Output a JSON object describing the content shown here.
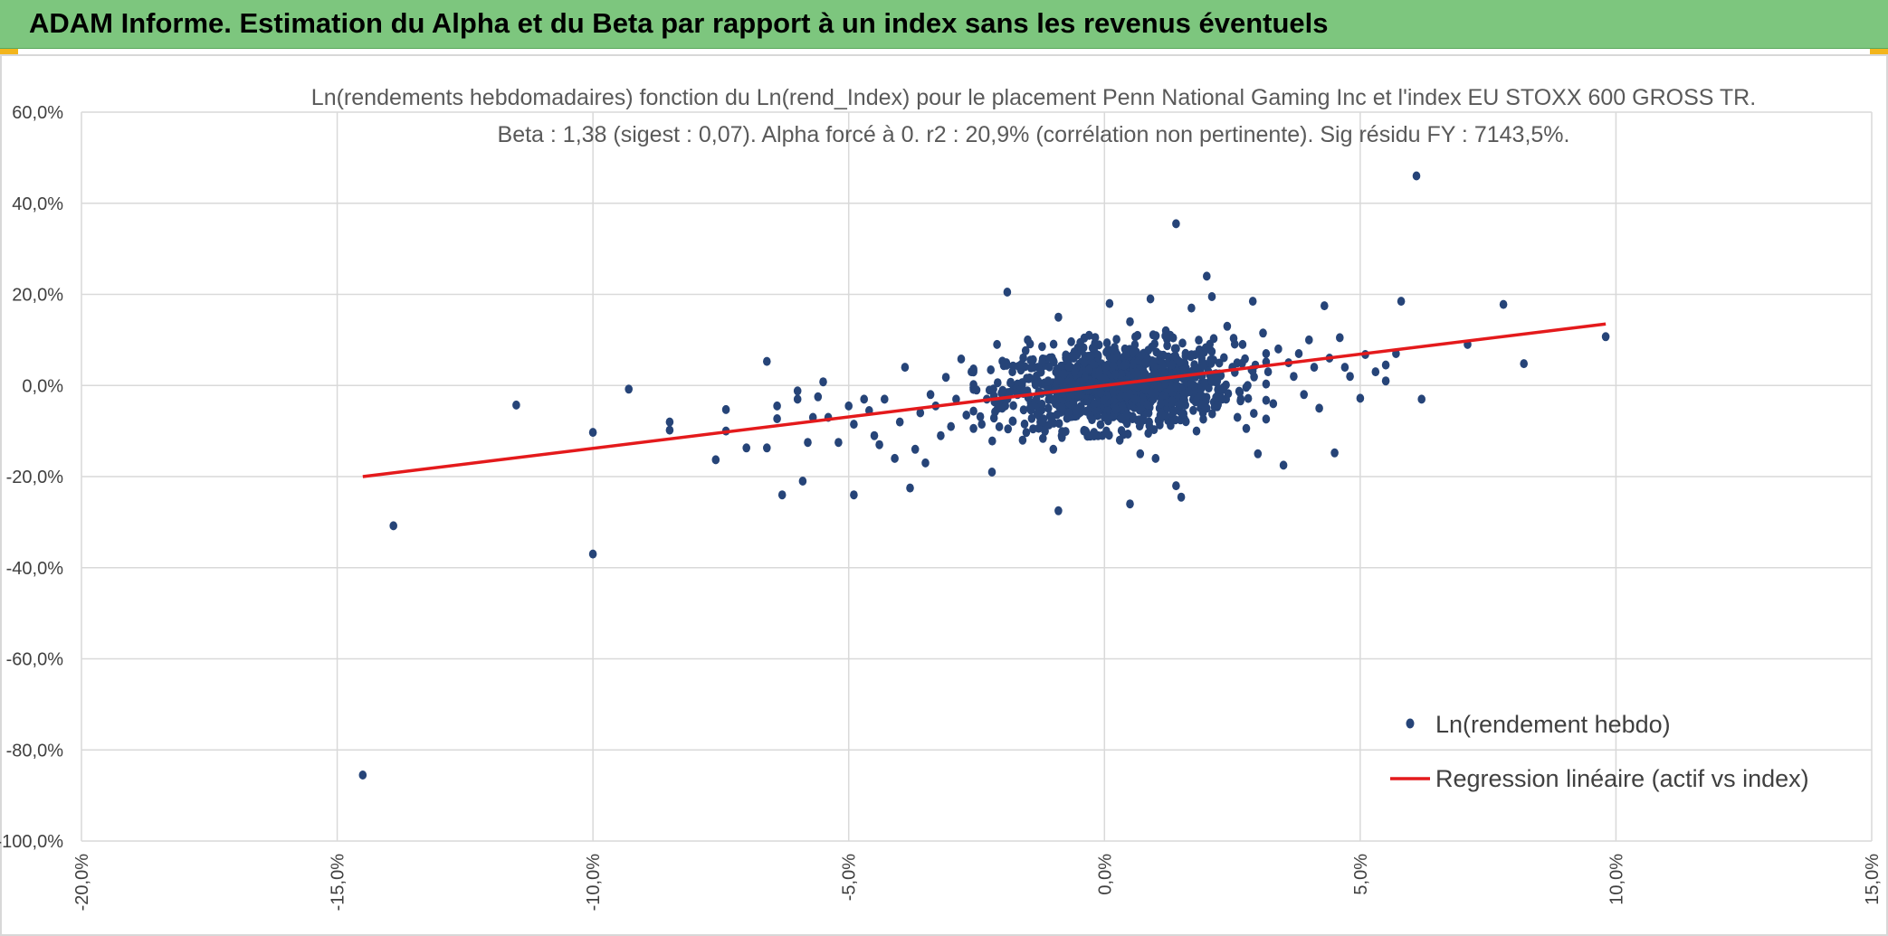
{
  "banner": {
    "title": "ADAM Informe. Estimation du Alpha et du Beta par rapport à un index sans les revenus éventuels",
    "color": "#7dc67e"
  },
  "chart_data": {
    "type": "scatter",
    "title_line1": "Ln(rendements hebdomadaires) fonction du Ln(rend_Index) pour le placement Penn National Gaming Inc et l'index EU STOXX 600 GROSS TR.",
    "title_line2": "Beta : 1,38 (sigest : 0,07). Alpha forcé à 0. r2 : 20,9% (corrélation non pertinente). Sig résidu FY : 7143,5%.",
    "xlim": [
      -0.2,
      0.15
    ],
    "ylim": [
      -1.0,
      0.6
    ],
    "x_ticks": [
      -0.2,
      -0.15,
      -0.1,
      -0.05,
      0.0,
      0.05,
      0.1,
      0.15
    ],
    "y_ticks": [
      0.6,
      0.4,
      0.2,
      0.0,
      -0.2,
      -0.4,
      -0.6,
      -0.8,
      -1.0
    ],
    "x_tick_labels": [
      "-20,0%",
      "-15,0%",
      "-10,0%",
      "-5,0%",
      "0,0%",
      "5,0%",
      "10,0%",
      "15,0%"
    ],
    "y_tick_labels": [
      "60,0%",
      "40,0%",
      "20,0%",
      "0,0%",
      "-20,0%",
      "-40,0%",
      "-60,0%",
      "-80,0%",
      "-100,0%"
    ],
    "grid": true,
    "legend_position": "bottom-right",
    "series": [
      {
        "name": "Ln(rendement hebdo)",
        "kind": "scatter",
        "color": "#264478",
        "points": [
          [
            -0.145,
            -0.855
          ],
          [
            -0.139,
            -0.308
          ],
          [
            -0.115,
            -0.043
          ],
          [
            -0.1,
            -0.37
          ],
          [
            -0.1,
            -0.103
          ],
          [
            -0.093,
            -0.008
          ],
          [
            -0.085,
            -0.08
          ],
          [
            -0.085,
            -0.098
          ],
          [
            -0.076,
            -0.163
          ],
          [
            -0.074,
            -0.1
          ],
          [
            -0.074,
            -0.053
          ],
          [
            -0.07,
            -0.137
          ],
          [
            -0.066,
            -0.137
          ],
          [
            -0.066,
            0.053
          ],
          [
            -0.064,
            -0.073
          ],
          [
            -0.064,
            -0.045
          ],
          [
            -0.063,
            -0.24
          ],
          [
            -0.06,
            -0.03
          ],
          [
            -0.06,
            -0.012
          ],
          [
            -0.059,
            -0.21
          ],
          [
            -0.058,
            -0.125
          ],
          [
            -0.057,
            -0.07
          ],
          [
            -0.056,
            -0.025
          ],
          [
            -0.055,
            0.008
          ],
          [
            -0.054,
            -0.07
          ],
          [
            -0.052,
            -0.125
          ],
          [
            -0.05,
            -0.045
          ],
          [
            -0.049,
            -0.24
          ],
          [
            -0.049,
            -0.085
          ],
          [
            -0.047,
            -0.03
          ],
          [
            -0.046,
            -0.055
          ],
          [
            -0.045,
            -0.11
          ],
          [
            -0.044,
            -0.13
          ],
          [
            -0.043,
            -0.03
          ],
          [
            -0.041,
            -0.16
          ],
          [
            -0.04,
            -0.08
          ],
          [
            -0.039,
            0.04
          ],
          [
            -0.038,
            -0.225
          ],
          [
            -0.037,
            -0.14
          ],
          [
            -0.036,
            -0.06
          ],
          [
            -0.035,
            -0.17
          ],
          [
            -0.034,
            -0.02
          ],
          [
            -0.033,
            -0.045
          ],
          [
            -0.032,
            -0.11
          ],
          [
            -0.031,
            0.018
          ],
          [
            -0.03,
            -0.09
          ],
          [
            -0.029,
            -0.03
          ],
          [
            -0.028,
            0.058
          ],
          [
            -0.027,
            -0.065
          ],
          [
            -0.026,
            0.03
          ],
          [
            -0.025,
            -0.01
          ],
          [
            -0.024,
            -0.085
          ],
          [
            -0.023,
            -0.03
          ],
          [
            -0.022,
            -0.19
          ],
          [
            -0.021,
            0.09
          ],
          [
            -0.02,
            -0.05
          ],
          [
            -0.019,
            0.205
          ],
          [
            -0.018,
            0.03
          ],
          [
            -0.017,
            -0.02
          ],
          [
            -0.016,
            -0.12
          ],
          [
            -0.015,
            0.1
          ],
          [
            -0.014,
            -0.045
          ],
          [
            -0.013,
            0.04
          ],
          [
            -0.012,
            -0.08
          ],
          [
            -0.011,
            0.01
          ],
          [
            -0.01,
            -0.14
          ],
          [
            -0.009,
            0.15
          ],
          [
            -0.009,
            -0.275
          ],
          [
            -0.008,
            0.025
          ],
          [
            -0.007,
            -0.06
          ],
          [
            -0.006,
            0.06
          ],
          [
            -0.005,
            -0.02
          ],
          [
            -0.004,
            -0.1
          ],
          [
            -0.003,
            0.11
          ],
          [
            -0.002,
            -0.04
          ],
          [
            -0.001,
            0.03
          ],
          [
            0.0,
            -0.07
          ],
          [
            0.001,
            0.18
          ],
          [
            0.002,
            0.0
          ],
          [
            0.003,
            -0.12
          ],
          [
            0.004,
            0.08
          ],
          [
            0.005,
            -0.26
          ],
          [
            0.005,
            0.14
          ],
          [
            0.006,
            -0.03
          ],
          [
            0.007,
            -0.15
          ],
          [
            0.008,
            0.05
          ],
          [
            0.009,
            0.19
          ],
          [
            0.01,
            -0.16
          ],
          [
            0.011,
            -0.04
          ],
          [
            0.012,
            0.12
          ],
          [
            0.013,
            -0.08
          ],
          [
            0.014,
            0.355
          ],
          [
            0.014,
            -0.22
          ],
          [
            0.015,
            -0.245
          ],
          [
            0.016,
            0.02
          ],
          [
            0.017,
            0.17
          ],
          [
            0.018,
            -0.1
          ],
          [
            0.019,
            0.06
          ],
          [
            0.02,
            0.24
          ],
          [
            0.02,
            -0.05
          ],
          [
            0.021,
            0.195
          ],
          [
            0.022,
            0.01
          ],
          [
            0.023,
            -0.03
          ],
          [
            0.024,
            0.13
          ],
          [
            0.025,
            0.04
          ],
          [
            0.026,
            -0.07
          ],
          [
            0.027,
            0.09
          ],
          [
            0.028,
            0.0
          ],
          [
            0.029,
            0.185
          ],
          [
            0.03,
            -0.15
          ],
          [
            0.031,
            0.115
          ],
          [
            0.032,
            0.03
          ],
          [
            0.033,
            -0.04
          ],
          [
            0.034,
            0.08
          ],
          [
            0.035,
            -0.175
          ],
          [
            0.036,
            0.05
          ],
          [
            0.037,
            0.02
          ],
          [
            0.038,
            0.07
          ],
          [
            0.039,
            -0.02
          ],
          [
            0.04,
            0.1
          ],
          [
            0.041,
            0.04
          ],
          [
            0.042,
            -0.05
          ],
          [
            0.043,
            0.175
          ],
          [
            0.044,
            0.06
          ],
          [
            0.045,
            -0.148
          ],
          [
            0.046,
            0.105
          ],
          [
            0.047,
            0.04
          ],
          [
            0.048,
            0.02
          ],
          [
            0.05,
            -0.028
          ],
          [
            0.051,
            0.068
          ],
          [
            0.053,
            0.03
          ],
          [
            0.055,
            0.045
          ],
          [
            0.055,
            0.01
          ],
          [
            0.057,
            0.07
          ],
          [
            0.058,
            0.185
          ],
          [
            0.061,
            0.46
          ],
          [
            0.062,
            -0.03
          ],
          [
            0.071,
            0.09
          ],
          [
            0.078,
            0.178
          ],
          [
            0.082,
            0.048
          ],
          [
            0.098,
            0.107
          ]
        ],
        "cluster": {
          "x_mean": 0.003,
          "x_sd": 0.011,
          "y_mean": 0.0,
          "y_sd": 0.045,
          "count": 1100
        }
      },
      {
        "name": "Regression linéaire (actif vs index)",
        "kind": "line",
        "color": "#e41a1c",
        "x": [
          -0.145,
          0.098
        ],
        "y": [
          -0.2,
          0.135
        ]
      }
    ]
  }
}
